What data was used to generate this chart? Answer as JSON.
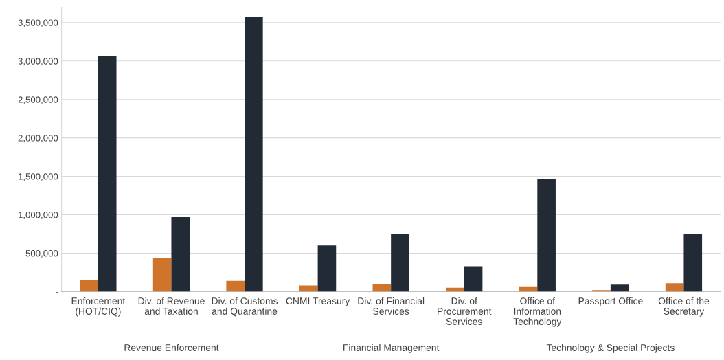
{
  "chart_data": {
    "type": "bar",
    "categories": [
      "Enforcement\n(HOT/CIQ)",
      "Div. of Revenue\nand Taxation",
      "Div. of Customs\nand Quarantine",
      "CNMI Treasury",
      "Div. of Financial\nServices",
      "Div. of\nProcurement\nServices",
      "Office of\nInformation\nTechnology",
      "Passport Office",
      "Office of the\nSecretary"
    ],
    "series": [
      {
        "color": "#d0742c",
        "values": [
          150000,
          440000,
          140000,
          80000,
          100000,
          50000,
          60000,
          20000,
          110000
        ]
      },
      {
        "color": "#222a35",
        "values": [
          3070000,
          970000,
          3570000,
          600000,
          750000,
          330000,
          1460000,
          90000,
          750000
        ]
      }
    ],
    "annotations": [
      "Revenue Enforcement",
      "Financial Management",
      "Technology & Special Projects"
    ],
    "ylim": [
      0,
      3700000
    ],
    "yticks": [
      {
        "value": 0,
        "label": "-"
      },
      {
        "value": 500000,
        "label": "500,000"
      },
      {
        "value": 1000000,
        "label": "1,000,000"
      },
      {
        "value": 1500000,
        "label": "1,500,000"
      },
      {
        "value": 2000000,
        "label": "2,000,000"
      },
      {
        "value": 2500000,
        "label": "2,500,000"
      },
      {
        "value": 3000000,
        "label": "3,000,000"
      },
      {
        "value": 3500000,
        "label": "3,500,000"
      }
    ],
    "grid": "y",
    "legend": false
  }
}
